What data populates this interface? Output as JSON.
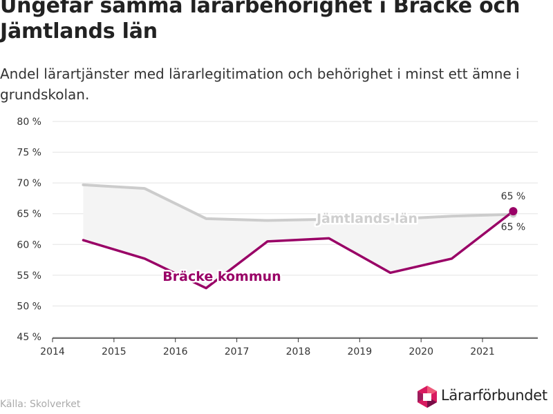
{
  "title": "Ungefär samma lärarbehörighet i Bräcke och Jämtlands län",
  "subtitle": "Andel lärartjänster med lärarlegitimation och behörighet i minst ett ämne i grundskolan.",
  "source": "Källa: Skolverket",
  "brand": {
    "name": "Lärarförbundet",
    "logo_icon": "hexagon-logo-icon"
  },
  "colors": {
    "bracke": "#990066",
    "lan": "#cccccc",
    "fill": "#f4f4f4",
    "grid": "#e3e3e3"
  },
  "chart_data": {
    "type": "line",
    "x_ticks": [
      "2014",
      "2015",
      "2016",
      "2017",
      "2018",
      "2019",
      "2020",
      "2021"
    ],
    "y_ticks": [
      "45 %",
      "50 %",
      "55 %",
      "60 %",
      "65 %",
      "70 %",
      "75 %",
      "80 %"
    ],
    "xlim": [
      2014,
      2021.9
    ],
    "ylim": [
      45,
      80
    ],
    "x": [
      2014.5,
      2015.5,
      2016.5,
      2017.5,
      2018.5,
      2019.5,
      2020.5,
      2021.5
    ],
    "series": [
      {
        "name": "Jämtlands län",
        "values": [
          69.7,
          69.1,
          64.2,
          63.9,
          64.1,
          64.1,
          64.6,
          64.9
        ]
      },
      {
        "name": "Bräcke kommun",
        "values": [
          60.7,
          57.7,
          52.9,
          60.5,
          61.0,
          55.4,
          57.7,
          65.4
        ]
      }
    ],
    "end_labels": [
      "65 %",
      "65 %"
    ],
    "grid": true
  }
}
